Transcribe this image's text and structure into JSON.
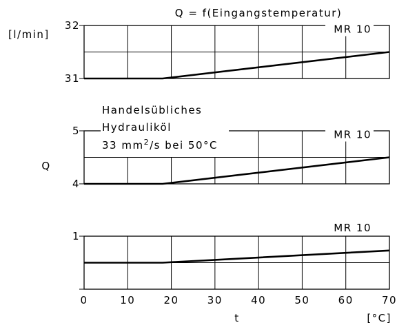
{
  "chart_data": {
    "type": "line",
    "title": "Q = f(Eingangstemperatur)",
    "ylabel": "Q",
    "yunit": "[l/min]",
    "xlabel": "t",
    "xunit": "[°C]",
    "x_ticks": [
      "0",
      "10",
      "20",
      "30",
      "40",
      "50",
      "60",
      "70"
    ],
    "xlim": [
      0,
      70
    ],
    "annotation_lines": [
      "Handelsübliches",
      "Hydrauliköl",
      "33 mm²/s bei 50°C"
    ],
    "panels": [
      {
        "ylim": [
          31,
          32
        ],
        "y_ticks": [
          "31",
          "32"
        ],
        "series": [
          {
            "name": "MR 10",
            "x": [
              0,
              18,
              70
            ],
            "y": [
              31,
              31,
              31.5
            ]
          }
        ]
      },
      {
        "ylim": [
          4,
          5
        ],
        "y_ticks": [
          "4",
          "5"
        ],
        "series": [
          {
            "name": "MR 10",
            "x": [
              0,
              18,
              70
            ],
            "y": [
              4,
              4,
              4.5
            ]
          }
        ]
      },
      {
        "ylim": [
          0,
          1
        ],
        "y_ticks": [
          "1"
        ],
        "series": [
          {
            "name": "MR 10",
            "x": [
              0,
              18,
              70
            ],
            "y": [
              0.5,
              0.5,
              0.73
            ]
          }
        ]
      }
    ]
  }
}
